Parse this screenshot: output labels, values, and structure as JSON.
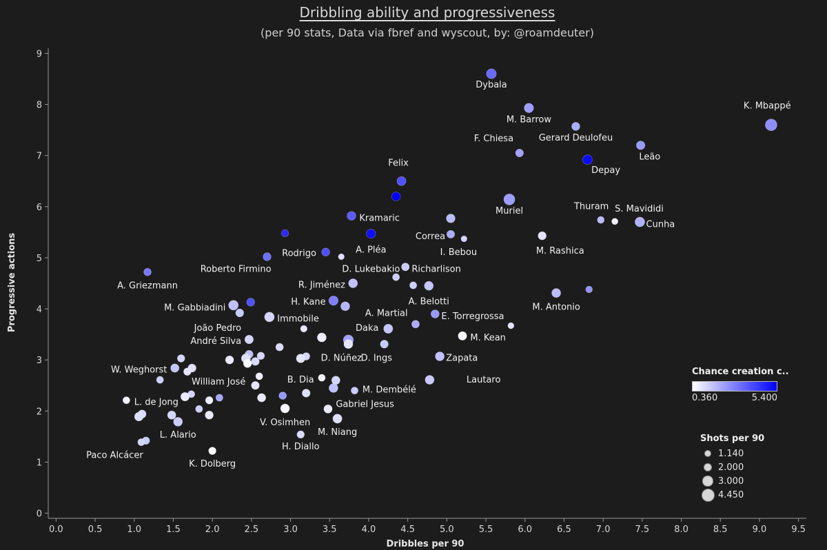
{
  "title": "Dribbling ability and progressiveness",
  "subtitle": "(per 90 stats, Data via fbref and wyscout, by: @roamdeuter)",
  "chart_data": {
    "type": "scatter",
    "xlabel": "Dribbles per 90",
    "ylabel": "Progressive actions",
    "xlim": [
      -0.1,
      9.6
    ],
    "ylim": [
      -0.1,
      9.1
    ],
    "x_ticks": [
      "0.0",
      "0.5",
      "1.0",
      "1.5",
      "2.0",
      "2.5",
      "3.0",
      "3.5",
      "4.0",
      "4.5",
      "5.0",
      "5.5",
      "6.0",
      "6.5",
      "7.0",
      "7.5",
      "8.0",
      "8.5",
      "9.0",
      "9.5"
    ],
    "y_ticks": [
      "0",
      "1",
      "2",
      "3",
      "4",
      "5",
      "6",
      "7",
      "8",
      "9"
    ],
    "color_legend": {
      "title": "Chance creation c..",
      "min_label": "0.360",
      "max_label": "5.400",
      "min": 0.36,
      "max": 5.4,
      "low_color": "#ffffff",
      "high_color": "#0000ff"
    },
    "size_legend": {
      "title": "Shots per 90",
      "entries": [
        {
          "label": "1.140",
          "value": 1.14
        },
        {
          "label": "2.000",
          "value": 2.0
        },
        {
          "label": "3.000",
          "value": 3.0
        },
        {
          "label": "4.450",
          "value": 4.45
        }
      ]
    },
    "points": [
      {
        "label": "K. Mbappé",
        "x": 9.15,
        "y": 7.6,
        "cc": 2.6,
        "shots": 4.45
      },
      {
        "label": "Dybala",
        "x": 5.57,
        "y": 8.6,
        "cc": 3.3,
        "shots": 3.5
      },
      {
        "label": "M. Barrow",
        "x": 6.05,
        "y": 7.93,
        "cc": 2.3,
        "shots": 3.2
      },
      {
        "label": "Gerard Deulofeu",
        "x": 6.65,
        "y": 7.57,
        "cc": 2.0,
        "shots": 2.6
      },
      {
        "label": "F. Chiesa",
        "x": 5.93,
        "y": 7.05,
        "cc": 2.2,
        "shots": 2.4
      },
      {
        "label": "Leão",
        "x": 7.48,
        "y": 7.2,
        "cc": 2.4,
        "shots": 2.8
      },
      {
        "label": "Depay",
        "x": 6.8,
        "y": 6.92,
        "cc": 5.2,
        "shots": 3.3
      },
      {
        "label": "Felix",
        "x": 4.42,
        "y": 6.5,
        "cc": 3.8,
        "shots": 3.0
      },
      {
        "label": "",
        "x": 4.35,
        "y": 6.2,
        "cc": 5.4,
        "shots": 2.8
      },
      {
        "label": "Muriel",
        "x": 5.8,
        "y": 6.14,
        "cc": 2.3,
        "shots": 4.1
      },
      {
        "label": "Thuram",
        "x": 6.97,
        "y": 5.74,
        "cc": 1.7,
        "shots": 1.9
      },
      {
        "label": "S. Mavididi",
        "x": 7.15,
        "y": 5.71,
        "cc": 0.6,
        "shots": 1.6
      },
      {
        "label": "Cunha",
        "x": 7.47,
        "y": 5.7,
        "cc": 1.9,
        "shots": 3.4
      },
      {
        "label": "Kramaric",
        "x": 3.78,
        "y": 5.82,
        "cc": 3.6,
        "shots": 2.9
      },
      {
        "label": "",
        "x": 5.05,
        "y": 5.77,
        "cc": 1.7,
        "shots": 2.9
      },
      {
        "label": "Correa",
        "x": 5.05,
        "y": 5.46,
        "cc": 2.0,
        "shots": 2.4
      },
      {
        "label": "I. Bebou",
        "x": 5.22,
        "y": 5.37,
        "cc": 1.2,
        "shots": 1.4
      },
      {
        "label": "",
        "x": 2.93,
        "y": 5.48,
        "cc": 4.6,
        "shots": 2.0
      },
      {
        "label": "A. Pléa",
        "x": 4.03,
        "y": 5.47,
        "cc": 5.1,
        "shots": 3.1
      },
      {
        "label": "M. Rashica",
        "x": 6.22,
        "y": 5.43,
        "cc": 0.9,
        "shots": 2.6
      },
      {
        "label": "Rodrigo",
        "x": 3.45,
        "y": 5.11,
        "cc": 3.8,
        "shots": 2.5
      },
      {
        "label": "",
        "x": 3.65,
        "y": 5.02,
        "cc": 1.0,
        "shots": 1.4
      },
      {
        "label": "Roberto Firmino",
        "x": 2.7,
        "y": 5.02,
        "cc": 3.2,
        "shots": 2.5
      },
      {
        "label": "D. Lukebakio",
        "x": 4.47,
        "y": 4.82,
        "cc": 1.6,
        "shots": 2.3
      },
      {
        "label": "Richarlison",
        "x": 4.47,
        "y": 4.82,
        "cc": 1.4,
        "shots": 2.3
      },
      {
        "label": "A. Griezmann",
        "x": 1.17,
        "y": 4.72,
        "cc": 3.0,
        "shots": 2.2
      },
      {
        "label": "",
        "x": 4.35,
        "y": 4.62,
        "cc": 1.3,
        "shots": 2.0
      },
      {
        "label": "R. Jiménez",
        "x": 3.8,
        "y": 4.5,
        "cc": 1.6,
        "shots": 3.0
      },
      {
        "label": "",
        "x": 4.57,
        "y": 4.46,
        "cc": 1.3,
        "shots": 2.0
      },
      {
        "label": "A. Belotti",
        "x": 4.77,
        "y": 4.45,
        "cc": 1.5,
        "shots": 3.0
      },
      {
        "label": "",
        "x": 6.82,
        "y": 4.38,
        "cc": 2.5,
        "shots": 1.8
      },
      {
        "label": "M. Antonio",
        "x": 6.4,
        "y": 4.31,
        "cc": 1.7,
        "shots": 3.0
      },
      {
        "label": "H. Kane",
        "x": 3.55,
        "y": 4.16,
        "cc": 2.9,
        "shots": 3.2
      },
      {
        "label": "",
        "x": 2.49,
        "y": 4.13,
        "cc": 3.8,
        "shots": 2.5
      },
      {
        "label": "",
        "x": 3.7,
        "y": 4.05,
        "cc": 1.8,
        "shots": 3.0
      },
      {
        "label": "M. Gabbiadini",
        "x": 2.27,
        "y": 4.07,
        "cc": 1.6,
        "shots": 3.4
      },
      {
        "label": "",
        "x": 2.35,
        "y": 3.92,
        "cc": 1.4,
        "shots": 2.5
      },
      {
        "label": "E. Torregrossa",
        "x": 4.85,
        "y": 3.9,
        "cc": 2.4,
        "shots": 2.6
      },
      {
        "label": "A. Martial",
        "x": 4.6,
        "y": 3.7,
        "cc": 2.0,
        "shots": 2.3
      },
      {
        "label": "Immobile",
        "x": 2.73,
        "y": 3.84,
        "cc": 1.2,
        "shots": 3.4
      },
      {
        "label": "",
        "x": 5.82,
        "y": 3.67,
        "cc": 0.9,
        "shots": 1.5
      },
      {
        "label": "Daka",
        "x": 4.25,
        "y": 3.61,
        "cc": 1.5,
        "shots": 3.1
      },
      {
        "label": "João Pedro",
        "x": 3.17,
        "y": 3.61,
        "cc": 0.8,
        "shots": 1.8
      },
      {
        "label": "M. Kean",
        "x": 5.2,
        "y": 3.47,
        "cc": 0.5,
        "shots": 2.8
      },
      {
        "label": "",
        "x": 3.4,
        "y": 3.44,
        "cc": 0.7,
        "shots": 3.0
      },
      {
        "label": "D. Núñez",
        "x": 3.74,
        "y": 3.39,
        "cc": 2.2,
        "shots": 3.6
      },
      {
        "label": "André Silva",
        "x": 2.47,
        "y": 3.4,
        "cc": 1.2,
        "shots": 2.8
      },
      {
        "label": "",
        "x": 3.74,
        "y": 3.31,
        "cc": 0.9,
        "shots": 3.0
      },
      {
        "label": "D. Ings",
        "x": 4.2,
        "y": 3.31,
        "cc": 1.4,
        "shots": 2.5
      },
      {
        "label": "",
        "x": 2.86,
        "y": 3.25,
        "cc": 1.1,
        "shots": 2.3
      },
      {
        "label": "Zapata",
        "x": 4.91,
        "y": 3.07,
        "cc": 1.6,
        "shots": 3.0
      },
      {
        "label": "",
        "x": 2.47,
        "y": 3.11,
        "cc": 1.6,
        "shots": 2.5
      },
      {
        "label": "",
        "x": 2.62,
        "y": 3.08,
        "cc": 1.2,
        "shots": 2.2
      },
      {
        "label": "",
        "x": 3.2,
        "y": 3.07,
        "cc": 1.2,
        "shots": 2.2
      },
      {
        "label": "",
        "x": 3.13,
        "y": 3.03,
        "cc": 0.9,
        "shots": 2.9
      },
      {
        "label": "",
        "x": 2.43,
        "y": 3.03,
        "cc": 1.0,
        "shots": 3.1
      },
      {
        "label": "",
        "x": 1.6,
        "y": 3.03,
        "cc": 1.2,
        "shots": 2.2
      },
      {
        "label": "",
        "x": 2.22,
        "y": 3.0,
        "cc": 0.8,
        "shots": 2.6
      },
      {
        "label": "",
        "x": 2.55,
        "y": 2.97,
        "cc": 1.1,
        "shots": 2.5
      },
      {
        "label": "",
        "x": 2.45,
        "y": 2.93,
        "cc": 0.4,
        "shots": 2.6
      },
      {
        "label": "",
        "x": 1.74,
        "y": 2.84,
        "cc": 1.0,
        "shots": 2.6
      },
      {
        "label": "W. Weghorst",
        "x": 1.52,
        "y": 2.84,
        "cc": 1.5,
        "shots": 2.7
      },
      {
        "label": "",
        "x": 1.68,
        "y": 2.77,
        "cc": 0.9,
        "shots": 2.2
      },
      {
        "label": "",
        "x": 2.6,
        "y": 2.68,
        "cc": 0.7,
        "shots": 2.0
      },
      {
        "label": "B. Dia",
        "x": 3.4,
        "y": 2.65,
        "cc": 0.6,
        "shots": 2.0
      },
      {
        "label": "",
        "x": 1.33,
        "y": 2.61,
        "cc": 1.3,
        "shots": 2.0
      },
      {
        "label": "Lautaro",
        "x": 4.78,
        "y": 2.61,
        "cc": 1.4,
        "shots": 3.0
      },
      {
        "label": "",
        "x": 3.58,
        "y": 2.6,
        "cc": 1.2,
        "shots": 2.7
      },
      {
        "label": "William José",
        "x": 2.55,
        "y": 2.5,
        "cc": 0.9,
        "shots": 2.5
      },
      {
        "label": "",
        "x": 3.55,
        "y": 2.45,
        "cc": 1.6,
        "shots": 3.0
      },
      {
        "label": "M. Dembélé",
        "x": 3.82,
        "y": 2.4,
        "cc": 1.4,
        "shots": 2.0
      },
      {
        "label": "",
        "x": 3.2,
        "y": 2.35,
        "cc": 1.0,
        "shots": 2.5
      },
      {
        "label": "",
        "x": 1.73,
        "y": 2.33,
        "cc": 1.2,
        "shots": 2.0
      },
      {
        "label": "",
        "x": 2.9,
        "y": 2.3,
        "cc": 2.4,
        "shots": 2.2
      },
      {
        "label": "",
        "x": 1.65,
        "y": 2.28,
        "cc": 0.8,
        "shots": 2.8
      },
      {
        "label": "",
        "x": 2.63,
        "y": 2.26,
        "cc": 0.8,
        "shots": 2.7
      },
      {
        "label": "",
        "x": 2.09,
        "y": 2.26,
        "cc": 2.1,
        "shots": 2.0
      },
      {
        "label": "L. de Jong",
        "x": 0.9,
        "y": 2.21,
        "cc": 0.6,
        "shots": 2.0
      },
      {
        "label": "",
        "x": 1.96,
        "y": 2.21,
        "cc": 0.7,
        "shots": 2.2
      },
      {
        "label": "Gabriel Jesus",
        "x": 3.48,
        "y": 2.04,
        "cc": 0.8,
        "shots": 2.7
      },
      {
        "label": "V. Osimhen",
        "x": 2.93,
        "y": 2.05,
        "cc": 0.5,
        "shots": 3.0
      },
      {
        "label": "",
        "x": 1.83,
        "y": 2.04,
        "cc": 1.3,
        "shots": 2.0
      },
      {
        "label": "",
        "x": 1.1,
        "y": 1.94,
        "cc": 1.1,
        "shots": 2.6
      },
      {
        "label": "",
        "x": 1.48,
        "y": 1.92,
        "cc": 1.2,
        "shots": 2.7
      },
      {
        "label": "",
        "x": 1.96,
        "y": 1.92,
        "cc": 0.8,
        "shots": 2.6
      },
      {
        "label": "",
        "x": 1.06,
        "y": 1.89,
        "cc": 1.0,
        "shots": 2.9
      },
      {
        "label": "M. Niang",
        "x": 3.6,
        "y": 1.85,
        "cc": 1.0,
        "shots": 3.1
      },
      {
        "label": "L. Alario",
        "x": 1.56,
        "y": 1.79,
        "cc": 1.4,
        "shots": 3.0
      },
      {
        "label": "H. Diallo",
        "x": 3.13,
        "y": 1.54,
        "cc": 1.1,
        "shots": 2.2
      },
      {
        "label": "",
        "x": 1.15,
        "y": 1.42,
        "cc": 1.4,
        "shots": 2.2
      },
      {
        "label": "Paco Alcácer",
        "x": 1.09,
        "y": 1.39,
        "cc": 1.2,
        "shots": 2.0
      },
      {
        "label": "K. Dolberg",
        "x": 2.0,
        "y": 1.22,
        "cc": 0.36,
        "shots": 2.2
      }
    ]
  },
  "annotations": [
    {
      "text": "K. Mbappé",
      "x": 9.1,
      "y": 7.92,
      "anchor": "middle"
    },
    {
      "text": "Dybala",
      "x": 5.57,
      "y": 8.33,
      "anchor": "middle"
    },
    {
      "text": "M. Barrow",
      "x": 6.05,
      "y": 7.65,
      "anchor": "middle"
    },
    {
      "text": "Gerard Deulofeu",
      "x": 6.65,
      "y": 7.29,
      "anchor": "middle"
    },
    {
      "text": "F. Chiesa",
      "x": 5.6,
      "y": 7.28,
      "anchor": "middle"
    },
    {
      "text": "Leão",
      "x": 7.46,
      "y": 6.92,
      "anchor": "start"
    },
    {
      "text": "Depay",
      "x": 6.85,
      "y": 6.66,
      "anchor": "start"
    },
    {
      "text": "Felix",
      "x": 4.38,
      "y": 6.8,
      "anchor": "middle"
    },
    {
      "text": "Muriel",
      "x": 5.8,
      "y": 5.86,
      "anchor": "middle"
    },
    {
      "text": "Thuram",
      "x": 6.85,
      "y": 5.95,
      "anchor": "middle"
    },
    {
      "text": "S. Mavididi",
      "x": 7.15,
      "y": 5.9,
      "anchor": "start"
    },
    {
      "text": "Cunha",
      "x": 7.55,
      "y": 5.6,
      "anchor": "start"
    },
    {
      "text": "Kramaric",
      "x": 3.88,
      "y": 5.72,
      "anchor": "start"
    },
    {
      "text": "Correa",
      "x": 4.98,
      "y": 5.36,
      "anchor": "end"
    },
    {
      "text": "I. Bebou",
      "x": 5.15,
      "y": 5.05,
      "anchor": "middle"
    },
    {
      "text": "A. Pléa",
      "x": 4.03,
      "y": 5.1,
      "anchor": "middle"
    },
    {
      "text": "M. Rashica",
      "x": 6.45,
      "y": 5.08,
      "anchor": "middle"
    },
    {
      "text": "Rodrigo",
      "x": 3.33,
      "y": 5.03,
      "anchor": "end"
    },
    {
      "text": "Roberto Firmino",
      "x": 2.3,
      "y": 4.72,
      "anchor": "middle"
    },
    {
      "text": "D. Lukebakio",
      "x": 4.03,
      "y": 4.72,
      "anchor": "middle"
    },
    {
      "text": "Richarlison",
      "x": 4.55,
      "y": 4.72,
      "anchor": "start"
    },
    {
      "text": "A. Griezmann",
      "x": 1.17,
      "y": 4.4,
      "anchor": "middle"
    },
    {
      "text": "R. Jiménez",
      "x": 3.7,
      "y": 4.41,
      "anchor": "end"
    },
    {
      "text": "A. Belotti",
      "x": 4.77,
      "y": 4.09,
      "anchor": "middle"
    },
    {
      "text": "M. Antonio",
      "x": 6.4,
      "y": 3.98,
      "anchor": "middle"
    },
    {
      "text": "H. Kane",
      "x": 3.45,
      "y": 4.08,
      "anchor": "end"
    },
    {
      "text": "M. Gabbiadini",
      "x": 2.17,
      "y": 3.97,
      "anchor": "end"
    },
    {
      "text": "E. Torregrossa",
      "x": 4.93,
      "y": 3.8,
      "anchor": "start"
    },
    {
      "text": "A. Martial",
      "x": 4.5,
      "y": 3.86,
      "anchor": "end"
    },
    {
      "text": "Immobile",
      "x": 2.83,
      "y": 3.75,
      "anchor": "start"
    },
    {
      "text": "Daka",
      "x": 3.98,
      "y": 3.57,
      "anchor": "middle"
    },
    {
      "text": "João Pedro",
      "x": 2.37,
      "y": 3.57,
      "anchor": "end"
    },
    {
      "text": "M. Kean",
      "x": 5.3,
      "y": 3.38,
      "anchor": "start"
    },
    {
      "text": "André Silva",
      "x": 2.37,
      "y": 3.31,
      "anchor": "end"
    },
    {
      "text": "D. Núñez",
      "x": 3.65,
      "y": 2.98,
      "anchor": "middle"
    },
    {
      "text": "D. Ings",
      "x": 4.1,
      "y": 2.98,
      "anchor": "middle"
    },
    {
      "text": "Zapata",
      "x": 4.99,
      "y": 2.98,
      "anchor": "start"
    },
    {
      "text": "W. Weghorst",
      "x": 1.42,
      "y": 2.75,
      "anchor": "end"
    },
    {
      "text": "B. Dia",
      "x": 3.3,
      "y": 2.56,
      "anchor": "end"
    },
    {
      "text": "Lautaro",
      "x": 5.47,
      "y": 2.56,
      "anchor": "middle"
    },
    {
      "text": "William José",
      "x": 2.08,
      "y": 2.52,
      "anchor": "middle"
    },
    {
      "text": "M. Dembélé",
      "x": 3.92,
      "y": 2.36,
      "anchor": "start"
    },
    {
      "text": "Gabriel Jesus",
      "x": 3.58,
      "y": 2.08,
      "anchor": "start"
    },
    {
      "text": "V. Osimhen",
      "x": 2.93,
      "y": 1.72,
      "anchor": "middle"
    },
    {
      "text": "L. de Jong",
      "x": 1.0,
      "y": 2.12,
      "anchor": "start"
    },
    {
      "text": "M. Niang",
      "x": 3.6,
      "y": 1.53,
      "anchor": "middle"
    },
    {
      "text": "L. Alario",
      "x": 1.56,
      "y": 1.48,
      "anchor": "middle"
    },
    {
      "text": "H. Diallo",
      "x": 3.13,
      "y": 1.25,
      "anchor": "middle"
    },
    {
      "text": "Paco Alcácer",
      "x": 0.75,
      "y": 1.08,
      "anchor": "middle"
    },
    {
      "text": "K. Dolberg",
      "x": 2.0,
      "y": 0.91,
      "anchor": "middle"
    }
  ]
}
